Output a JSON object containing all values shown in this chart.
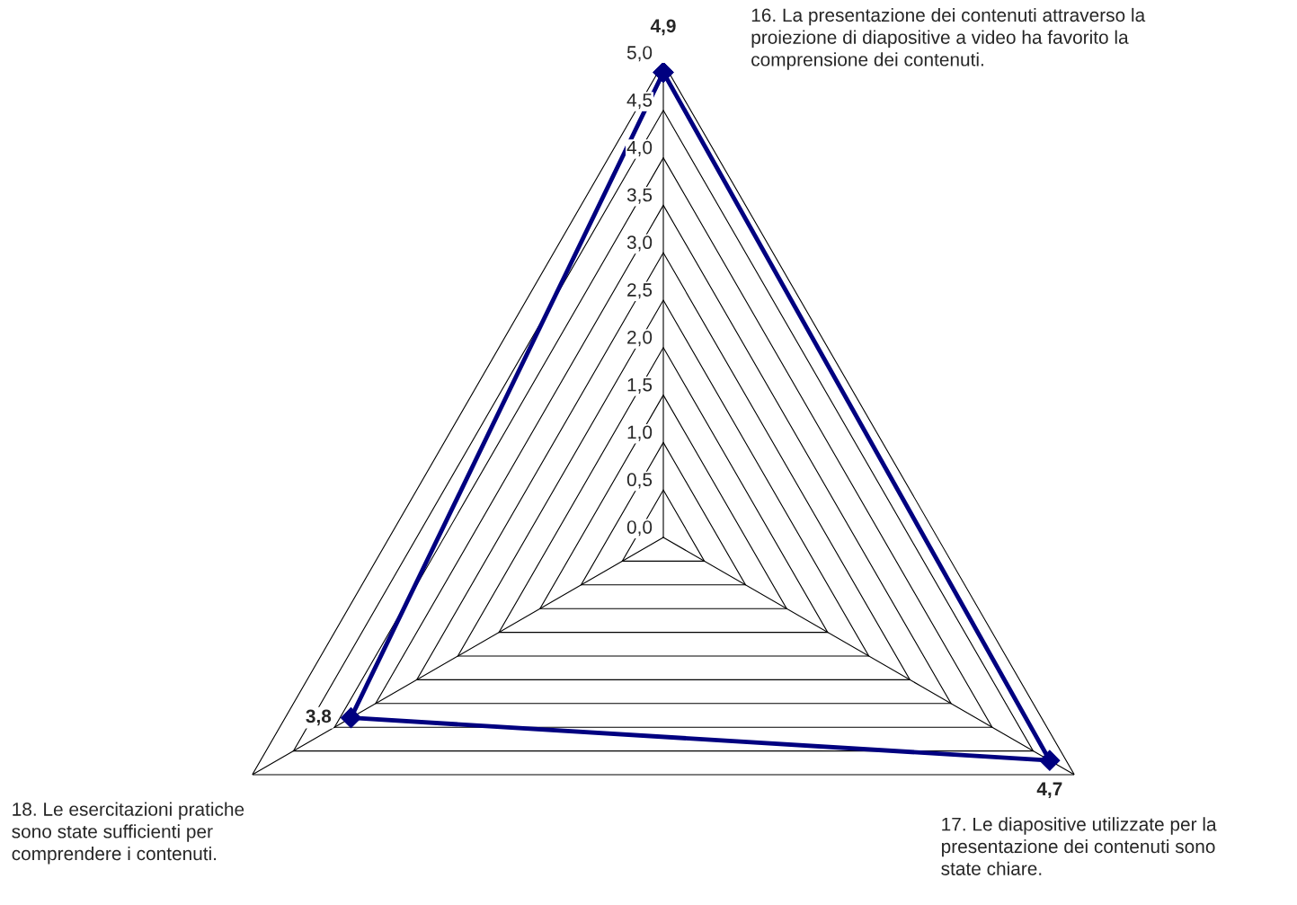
{
  "chart_data": {
    "type": "radar",
    "categories": [
      "16. La presentazione dei contenuti attraverso la\nproiezione di diapositive a video ha favorito la\ncomprensione dei contenuti.",
      "17. Le diapositive utilizzate per la\npresentazione dei contenuti sono\nstate chiare.",
      "18. Le esercitazioni pratiche\nsono state sufficienti per\ncomprendere i contenuti."
    ],
    "series": [
      {
        "color": "#000080",
        "values": [
          4.9,
          4.7,
          3.8
        ],
        "value_labels": [
          "4,9",
          "4,7",
          "3,8"
        ]
      }
    ],
    "ylim": [
      0,
      5
    ],
    "yticks": [
      {
        "value": 0,
        "label": "0,0"
      },
      {
        "value": 0.5,
        "label": "0,5"
      },
      {
        "value": 1,
        "label": "1,0"
      },
      {
        "value": 1.5,
        "label": "1,5"
      },
      {
        "value": 2,
        "label": "2,0"
      },
      {
        "value": 2.5,
        "label": "2,5"
      },
      {
        "value": 3,
        "label": "3,0"
      },
      {
        "value": 3.5,
        "label": "3,5"
      },
      {
        "value": 4,
        "label": "4,0"
      },
      {
        "value": 4.5,
        "label": "4,5"
      },
      {
        "value": 5,
        "label": "5,0"
      }
    ],
    "grid": true,
    "marker": "diamond",
    "line_style": "solid"
  }
}
